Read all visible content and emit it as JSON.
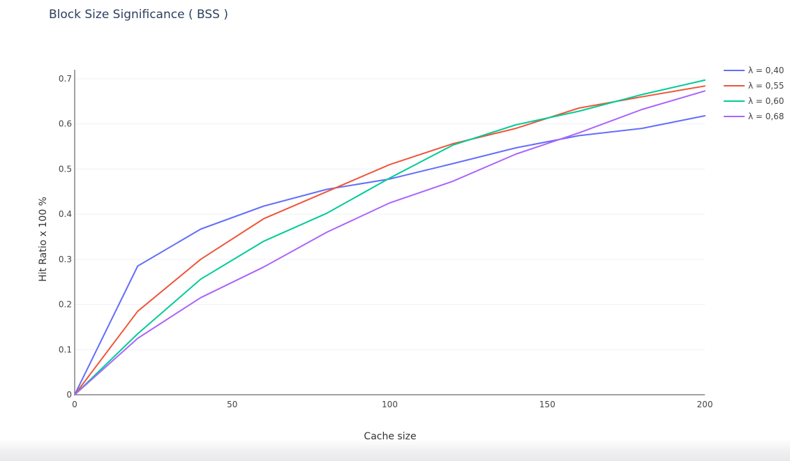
{
  "chart_data": {
    "type": "line",
    "title": "Block Size Significance ( BSS )",
    "xlabel": "Cache size",
    "ylabel": "Hit Ratio x 100 %",
    "xlim": [
      0,
      200
    ],
    "ylim": [
      0,
      0.72
    ],
    "x_ticks": [
      0,
      50,
      100,
      150,
      200
    ],
    "y_ticks": [
      0,
      0.1,
      0.2,
      0.3,
      0.4,
      0.5,
      0.6,
      0.7
    ],
    "grid": true,
    "legend_position": "top-right",
    "x": [
      0,
      20,
      40,
      60,
      80,
      100,
      120,
      140,
      160,
      180,
      200
    ],
    "series": [
      {
        "name": "λ = 0,40",
        "color": "#636efa",
        "values": [
          0,
          0.285,
          0.367,
          0.418,
          0.455,
          0.478,
          0.512,
          0.547,
          0.574,
          0.59,
          0.618
        ]
      },
      {
        "name": "λ = 0,55",
        "color": "#ef553b",
        "values": [
          0,
          0.185,
          0.3,
          0.39,
          0.45,
          0.51,
          0.556,
          0.59,
          0.635,
          0.66,
          0.684
        ]
      },
      {
        "name": "λ = 0,60",
        "color": "#00cc96",
        "values": [
          0,
          0.135,
          0.256,
          0.34,
          0.402,
          0.48,
          0.553,
          0.598,
          0.628,
          0.665,
          0.697
        ]
      },
      {
        "name": "λ = 0,68",
        "color": "#ab63fa",
        "values": [
          0,
          0.125,
          0.215,
          0.283,
          0.36,
          0.425,
          0.473,
          0.533,
          0.58,
          0.632,
          0.673
        ]
      }
    ]
  }
}
